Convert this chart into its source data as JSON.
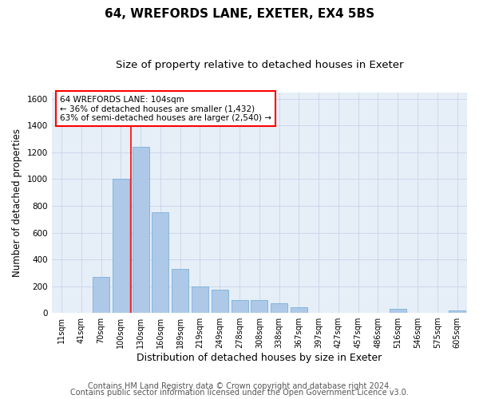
{
  "title1": "64, WREFORDS LANE, EXETER, EX4 5BS",
  "title2": "Size of property relative to detached houses in Exeter",
  "xlabel": "Distribution of detached houses by size in Exeter",
  "ylabel": "Number of detached properties",
  "annotation_line1": "64 WREFORDS LANE: 104sqm",
  "annotation_line2": "← 36% of detached houses are smaller (1,432)",
  "annotation_line3": "63% of semi-detached houses are larger (2,540) →",
  "footer1": "Contains HM Land Registry data © Crown copyright and database right 2024.",
  "footer2": "Contains public sector information licensed under the Open Government Licence v3.0.",
  "bin_labels": [
    "11sqm",
    "41sqm",
    "70sqm",
    "100sqm",
    "130sqm",
    "160sqm",
    "189sqm",
    "219sqm",
    "249sqm",
    "278sqm",
    "308sqm",
    "338sqm",
    "367sqm",
    "397sqm",
    "427sqm",
    "457sqm",
    "486sqm",
    "516sqm",
    "546sqm",
    "575sqm",
    "605sqm"
  ],
  "bar_values": [
    0,
    0,
    270,
    1000,
    1240,
    750,
    330,
    195,
    175,
    95,
    95,
    70,
    45,
    0,
    0,
    0,
    0,
    30,
    0,
    0,
    20
  ],
  "bar_color": "#aec8e8",
  "bar_edge_color": "#6aaad4",
  "vline_x": 3.5,
  "vline_color": "red",
  "ylim": [
    0,
    1650
  ],
  "yticks": [
    0,
    200,
    400,
    600,
    800,
    1000,
    1200,
    1400,
    1600
  ],
  "grid_color": "#c8d4e8",
  "bg_color": "#e6eef8",
  "annotation_box_color": "red",
  "title1_fontsize": 11,
  "title2_fontsize": 9.5,
  "xlabel_fontsize": 9,
  "ylabel_fontsize": 8.5,
  "tick_fontsize": 7.5,
  "xtick_fontsize": 7,
  "footer_fontsize": 7,
  "annot_fontsize": 7.5
}
